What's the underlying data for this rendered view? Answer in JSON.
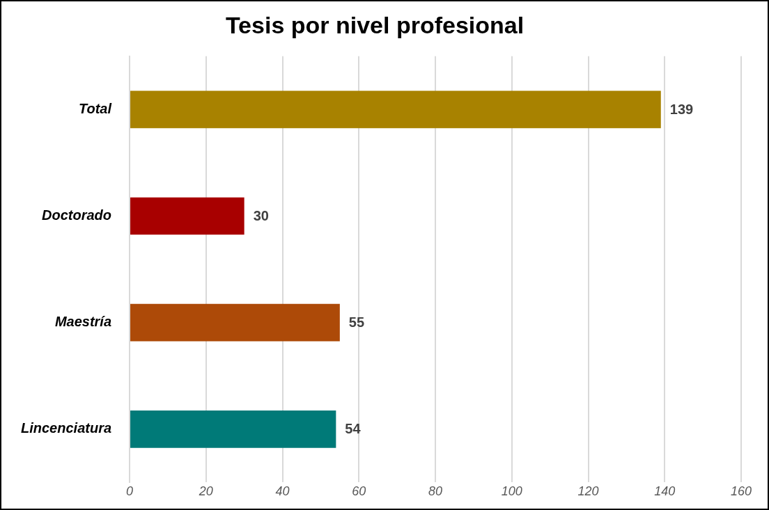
{
  "chart_data": {
    "type": "bar",
    "orientation": "horizontal",
    "title": "Tesis por nivel profesional",
    "categories": [
      "Total",
      "Doctorado",
      "Maestría",
      "Lincenciatura"
    ],
    "values": [
      139,
      30,
      55,
      54
    ],
    "colors": [
      "#a88200",
      "#a80000",
      "#ad4a08",
      "#007a78"
    ],
    "xlim": [
      0,
      160
    ],
    "xticks": [
      0,
      20,
      40,
      60,
      80,
      100,
      120,
      140,
      160
    ],
    "grid": "x",
    "data_labels": true,
    "legend": false
  }
}
